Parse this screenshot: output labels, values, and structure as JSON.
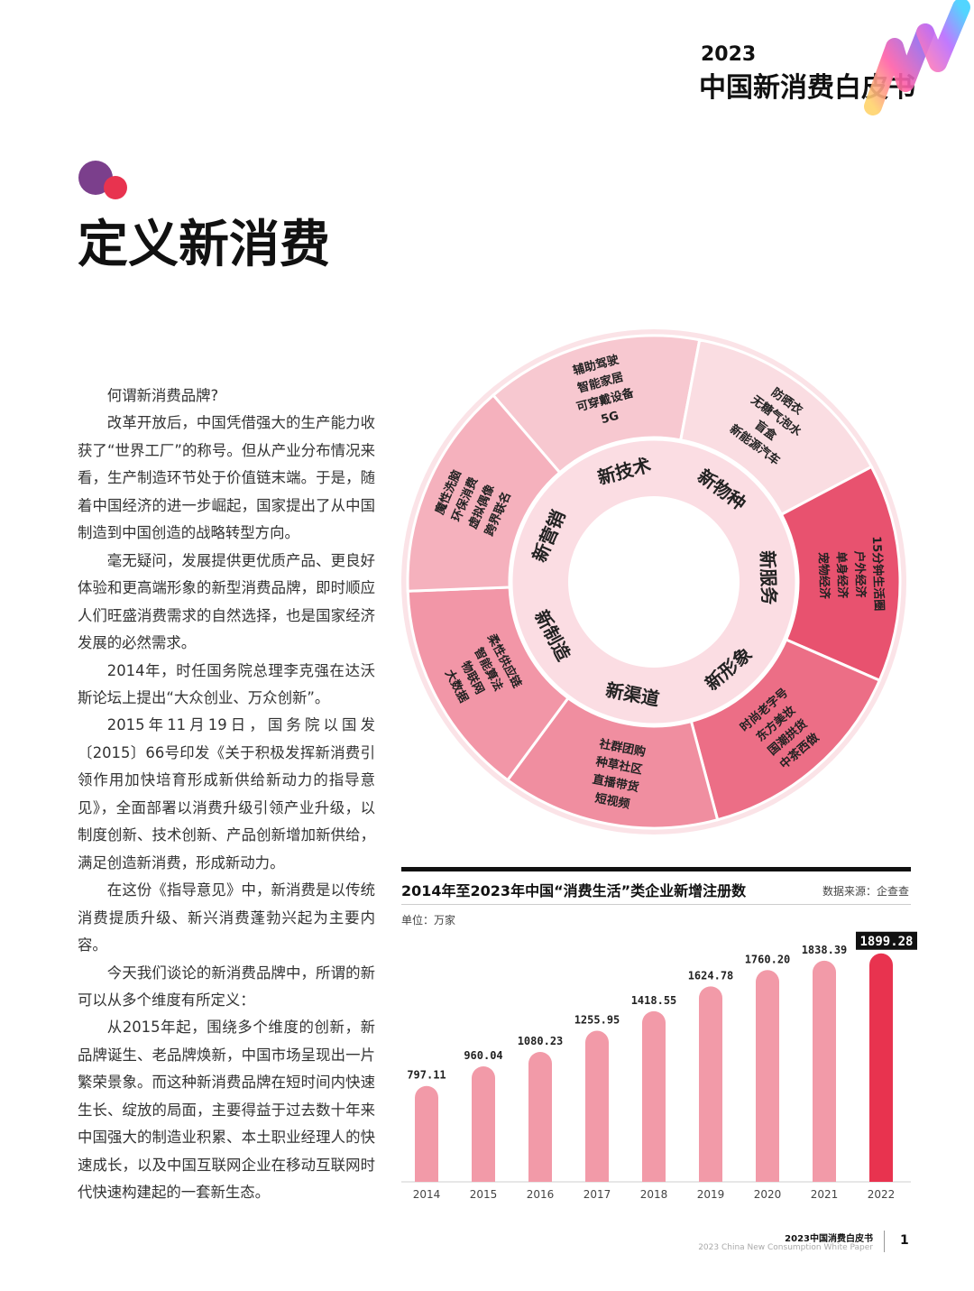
{
  "header": {
    "year": "2023",
    "title": "中国新消费白皮书"
  },
  "page_title": "定义新消费",
  "body_paragraphs": [
    "何谓新消费品牌?",
    "改革开放后，中国凭借强大的生产能力收获了“世界工厂”的称号。但从产业分布情况来看，生产制造环节处于价值链末端。于是，随着中国经济的进一步崛起，国家提出了从中国制造到中国创造的战略转型方向。",
    "毫无疑问，发展提供更优质产品、更良好体验和更高端形象的新型消费品牌，即时顺应人们旺盛消费需求的自然选择，也是国家经济发展的必然需求。",
    "2014年，时任国务院总理李克强在达沃斯论坛上提出“大众创业、万众创新”。",
    "2015年11月19日，国务院以国发〔2015〕66号印发《关于积极发挥新消费引领作用加快培育形成新供给新动力的指导意见》，全面部署以消费升级引领产业升级，以制度创新、技术创新、产品创新增加新供给，满足创造新消费，形成新动力。",
    "在这份《指导意见》中，新消费是以传统消费提质升级、新兴消费蓬勃兴起为主要内容。",
    "今天我们谈论的新消费品牌中，所谓的新可以从多个维度有所定义：",
    "从2015年起，围绕多个维度的创新，新品牌诞生、老品牌焕新，中国市场呈现出一片繁荣景象。而这种新消费品牌在短时间内快速生长、绽放的局面，主要得益于过去数十年来中国强大的制造业积累、本土职业经理人的快速成长，以及中国互联网企业在移动互联网时代快速构建起的一套新生态。"
  ],
  "wheel": {
    "segments": [
      {
        "label": "新技术",
        "items": [
          "5G",
          "可穿戴设备",
          "智能家居",
          "辅助驾驶"
        ],
        "color": "#f7c8d0"
      },
      {
        "label": "新物种",
        "items": [
          "新能源汽车",
          "盲盒",
          "无糖气泡水",
          "防晒衣"
        ],
        "color": "#fadde2"
      },
      {
        "label": "新服务",
        "items": [
          "宠物经济",
          "单身经济",
          "户外经济",
          "15分钟生活圈"
        ],
        "color": "#e8526f"
      },
      {
        "label": "新形象",
        "items": [
          "中茶西做",
          "国潮拱货",
          "东方美妆",
          "时尚老字号"
        ],
        "color": "#ec6e86"
      },
      {
        "label": "新渠道",
        "items": [
          "短视频",
          "直播带货",
          "种草社区",
          "社群团购"
        ],
        "color": "#f08ea0"
      },
      {
        "label": "新制造",
        "items": [
          "大数据",
          "物联网",
          "智能算法",
          "柔性供应链"
        ],
        "color": "#f296a7"
      },
      {
        "label": "新营销",
        "items": [
          "跨界联名",
          "虚拟偶像",
          "环保消费",
          "魔性洗脑"
        ],
        "color": "#f5b1bd"
      }
    ]
  },
  "chart_header": {
    "title": "2014年至2023年中国“消费生活”类企业新增注册数",
    "source": "数据来源：企查查",
    "unit": "单位：万家"
  },
  "chart_data": {
    "type": "bar",
    "categories": [
      "2014",
      "2015",
      "2016",
      "2017",
      "2018",
      "2019",
      "2020",
      "2021",
      "2022"
    ],
    "values": [
      797.11,
      960.04,
      1080.23,
      1255.95,
      1418.55,
      1624.78,
      1760.2,
      1838.39,
      1899.28
    ],
    "value_labels": [
      "797.11",
      "960.04",
      "1080.23",
      "1255.95",
      "1418.55",
      "1624.78",
      "1760.20",
      "1838.39",
      "1899.28"
    ],
    "highlight_index": 8,
    "bar_color": "#f29aa8",
    "highlight_color": "#e8334f",
    "title": "2014年至2023年中国“消费生活”类企业新增注册数",
    "xlabel": "",
    "ylabel": "",
    "ylim": [
      0,
      1950
    ]
  },
  "footer": {
    "title": "2023中国消费白皮书",
    "subtitle": "2023 China New Consumption White Paper",
    "page": "1"
  }
}
